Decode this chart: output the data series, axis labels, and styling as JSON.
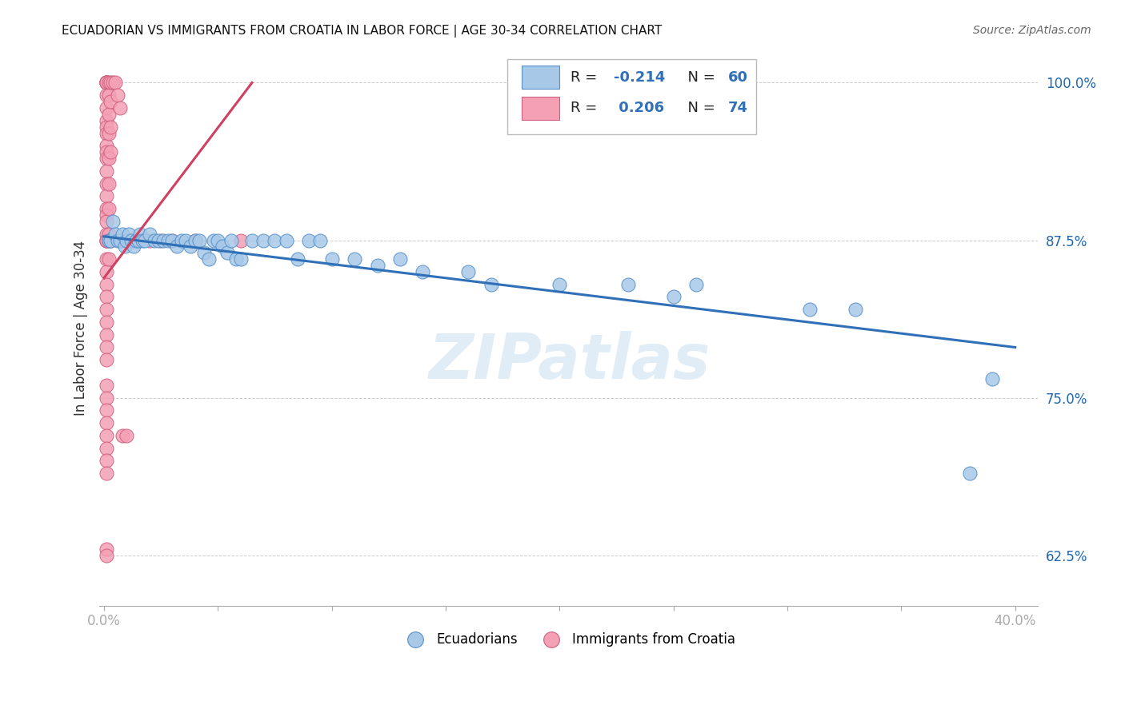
{
  "title": "ECUADORIAN VS IMMIGRANTS FROM CROATIA IN LABOR FORCE | AGE 30-34 CORRELATION CHART",
  "source": "Source: ZipAtlas.com",
  "ylabel": "In Labor Force | Age 30-34",
  "xlim": [
    -0.002,
    0.41
  ],
  "ylim": [
    0.585,
    1.025
  ],
  "xticks": [
    0.0,
    0.05,
    0.1,
    0.15,
    0.2,
    0.25,
    0.3,
    0.35,
    0.4
  ],
  "xticklabels": [
    "0.0%",
    "",
    "",
    "",
    "",
    "",
    "",
    "",
    "40.0%"
  ],
  "yticks": [
    0.625,
    0.75,
    0.875,
    1.0
  ],
  "yticklabels": [
    "62.5%",
    "75.0%",
    "87.5%",
    "100.0%"
  ],
  "blue_R": -0.214,
  "blue_N": 60,
  "pink_R": 0.206,
  "pink_N": 74,
  "blue_color": "#a8c8e8",
  "pink_color": "#f4a0b5",
  "blue_edge_color": "#5590c8",
  "pink_edge_color": "#d06080",
  "blue_line_color": "#3070b8",
  "pink_line_color": "#d04060",
  "blue_dots": [
    [
      0.002,
      0.875
    ],
    [
      0.003,
      0.875
    ],
    [
      0.004,
      0.89
    ],
    [
      0.005,
      0.88
    ],
    [
      0.006,
      0.875
    ],
    [
      0.007,
      0.875
    ],
    [
      0.008,
      0.88
    ],
    [
      0.009,
      0.87
    ],
    [
      0.01,
      0.875
    ],
    [
      0.011,
      0.88
    ],
    [
      0.012,
      0.875
    ],
    [
      0.013,
      0.87
    ],
    [
      0.014,
      0.875
    ],
    [
      0.015,
      0.875
    ],
    [
      0.016,
      0.88
    ],
    [
      0.017,
      0.875
    ],
    [
      0.018,
      0.875
    ],
    [
      0.02,
      0.88
    ],
    [
      0.022,
      0.875
    ],
    [
      0.024,
      0.875
    ],
    [
      0.026,
      0.875
    ],
    [
      0.028,
      0.875
    ],
    [
      0.03,
      0.875
    ],
    [
      0.032,
      0.87
    ],
    [
      0.034,
      0.875
    ],
    [
      0.036,
      0.875
    ],
    [
      0.038,
      0.87
    ],
    [
      0.04,
      0.875
    ],
    [
      0.042,
      0.875
    ],
    [
      0.044,
      0.865
    ],
    [
      0.046,
      0.86
    ],
    [
      0.048,
      0.875
    ],
    [
      0.05,
      0.875
    ],
    [
      0.052,
      0.87
    ],
    [
      0.054,
      0.865
    ],
    [
      0.056,
      0.875
    ],
    [
      0.058,
      0.86
    ],
    [
      0.06,
      0.86
    ],
    [
      0.065,
      0.875
    ],
    [
      0.07,
      0.875
    ],
    [
      0.075,
      0.875
    ],
    [
      0.08,
      0.875
    ],
    [
      0.085,
      0.86
    ],
    [
      0.09,
      0.875
    ],
    [
      0.095,
      0.875
    ],
    [
      0.1,
      0.86
    ],
    [
      0.11,
      0.86
    ],
    [
      0.12,
      0.855
    ],
    [
      0.13,
      0.86
    ],
    [
      0.14,
      0.85
    ],
    [
      0.16,
      0.85
    ],
    [
      0.17,
      0.84
    ],
    [
      0.2,
      0.84
    ],
    [
      0.23,
      0.84
    ],
    [
      0.25,
      0.83
    ],
    [
      0.26,
      0.84
    ],
    [
      0.31,
      0.82
    ],
    [
      0.33,
      0.82
    ],
    [
      0.38,
      0.69
    ],
    [
      0.39,
      0.765
    ]
  ],
  "pink_dots": [
    [
      0.001,
      1.0
    ],
    [
      0.001,
      1.0
    ],
    [
      0.001,
      1.0
    ],
    [
      0.001,
      1.0
    ],
    [
      0.001,
      1.0
    ],
    [
      0.001,
      1.0
    ],
    [
      0.001,
      0.99
    ],
    [
      0.001,
      0.98
    ],
    [
      0.001,
      0.97
    ],
    [
      0.001,
      0.965
    ],
    [
      0.001,
      0.96
    ],
    [
      0.001,
      0.95
    ],
    [
      0.001,
      0.945
    ],
    [
      0.001,
      0.94
    ],
    [
      0.001,
      0.93
    ],
    [
      0.001,
      0.92
    ],
    [
      0.001,
      0.91
    ],
    [
      0.001,
      0.9
    ],
    [
      0.001,
      0.895
    ],
    [
      0.001,
      0.89
    ],
    [
      0.001,
      0.88
    ],
    [
      0.001,
      0.875
    ],
    [
      0.001,
      0.875
    ],
    [
      0.001,
      0.875
    ],
    [
      0.001,
      0.86
    ],
    [
      0.001,
      0.85
    ],
    [
      0.001,
      0.84
    ],
    [
      0.001,
      0.83
    ],
    [
      0.001,
      0.82
    ],
    [
      0.001,
      0.81
    ],
    [
      0.001,
      0.8
    ],
    [
      0.001,
      0.79
    ],
    [
      0.001,
      0.78
    ],
    [
      0.001,
      0.76
    ],
    [
      0.001,
      0.75
    ],
    [
      0.001,
      0.74
    ],
    [
      0.001,
      0.73
    ],
    [
      0.001,
      0.72
    ],
    [
      0.001,
      0.71
    ],
    [
      0.001,
      0.7
    ],
    [
      0.001,
      0.69
    ],
    [
      0.001,
      0.63
    ],
    [
      0.001,
      0.625
    ],
    [
      0.002,
      1.0
    ],
    [
      0.002,
      0.99
    ],
    [
      0.002,
      0.975
    ],
    [
      0.002,
      0.96
    ],
    [
      0.002,
      0.94
    ],
    [
      0.002,
      0.92
    ],
    [
      0.002,
      0.9
    ],
    [
      0.002,
      0.88
    ],
    [
      0.002,
      0.875
    ],
    [
      0.002,
      0.86
    ],
    [
      0.003,
      1.0
    ],
    [
      0.003,
      0.985
    ],
    [
      0.003,
      0.965
    ],
    [
      0.003,
      0.945
    ],
    [
      0.003,
      0.875
    ],
    [
      0.004,
      1.0
    ],
    [
      0.005,
      1.0
    ],
    [
      0.006,
      0.99
    ],
    [
      0.007,
      0.98
    ],
    [
      0.008,
      0.875
    ],
    [
      0.009,
      0.875
    ],
    [
      0.01,
      0.875
    ],
    [
      0.012,
      0.875
    ],
    [
      0.015,
      0.875
    ],
    [
      0.02,
      0.875
    ],
    [
      0.025,
      0.875
    ],
    [
      0.03,
      0.875
    ],
    [
      0.04,
      0.875
    ],
    [
      0.06,
      0.875
    ],
    [
      0.008,
      0.72
    ],
    [
      0.01,
      0.72
    ]
  ],
  "watermark": "ZIPatlas"
}
